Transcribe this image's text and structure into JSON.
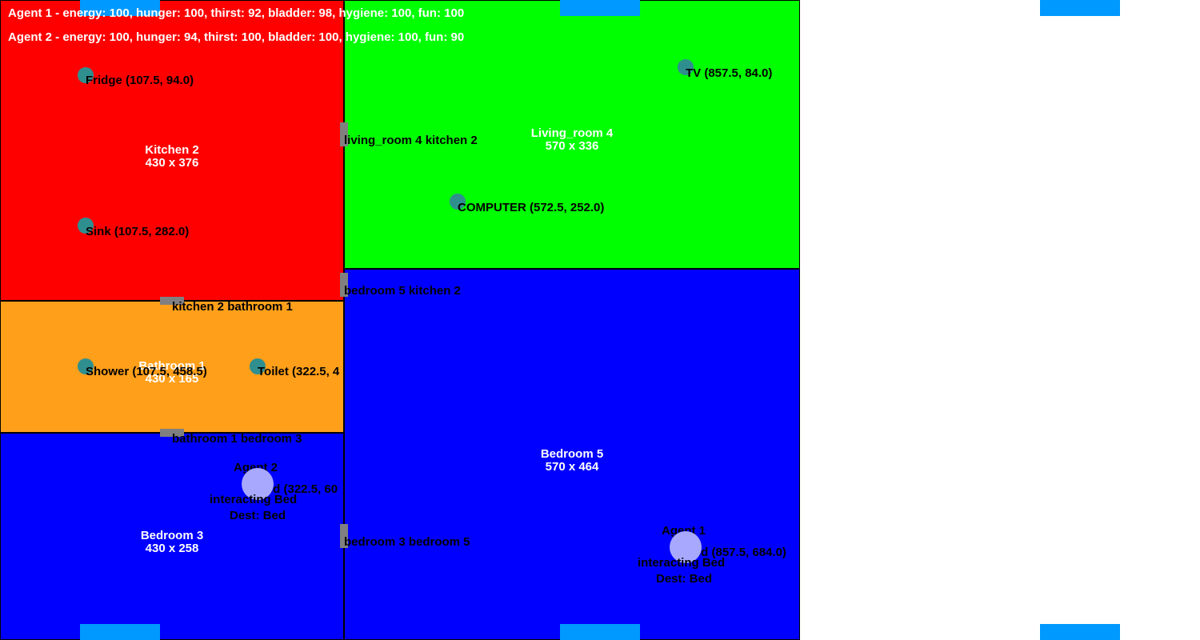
{
  "rooms": {
    "kitchen": {
      "name": "Kitchen 2",
      "size": "430 x 376",
      "color": "#ff0000"
    },
    "living": {
      "name": "Living_room 4",
      "size": "570 x 336",
      "color": "#00ff00"
    },
    "bathroom": {
      "name": "Bathroom 1",
      "size": "430 x 165",
      "color": "#ff9f1a"
    },
    "bedroom3": {
      "name": "Bedroom 3",
      "size": "430 x 258",
      "color": "#0000ff"
    },
    "bedroom5": {
      "name": "Bedroom 5",
      "size": "570 x 464",
      "color": "#0000ff"
    }
  },
  "doors": {
    "living_kitchen": "living_room 4 kitchen 2",
    "bedroom5_kitchen": "bedroom 5 kitchen 2",
    "kitchen_bathroom": "kitchen 2 bathroom 1",
    "bathroom_bedroom3": "bathroom 1 bedroom 3",
    "bedroom3_bedroom5": "bedroom 3 bedroom 5"
  },
  "objects": {
    "fridge": "Fridge (107.5, 94.0)",
    "sink": "Sink (107.5, 282.0)",
    "tv": "TV (857.5, 84.0)",
    "computer": "COMPUTER (572.5, 252.0)",
    "shower": "Shower (107.5, 458.5)",
    "toilet": "Toilet (322.5, 4",
    "bed3": "Bed (322.5, 60",
    "bed5": "Bed (857.5, 684.0)"
  },
  "agents": {
    "agent1": {
      "name": "Agent 1",
      "state": "interacting Bed",
      "dest": "Dest: Bed"
    },
    "agent2": {
      "name": "Agent 2",
      "state": "interacting Bed",
      "dest": "Dest: Bed"
    }
  },
  "status": {
    "agent1": "Agent 1 - energy: 100, hunger: 100, thirst: 92, bladder: 98, hygiene: 100, fun: 100",
    "agent2": "Agent 2 - energy: 100, hunger: 94, thirst: 100, bladder: 100, hygiene: 100, fun: 90"
  },
  "colors": {
    "door": "#808080",
    "window": "#0099ff",
    "object": "#2f8f8f",
    "agent": "#a8a8ff"
  }
}
